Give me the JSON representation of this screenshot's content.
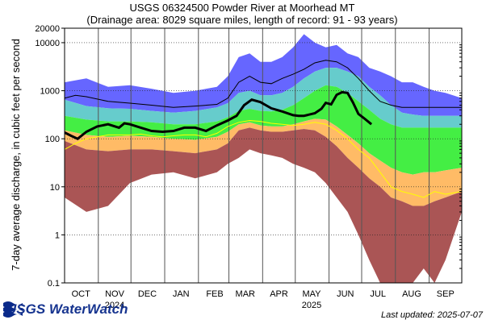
{
  "chart_data": {
    "type": "area",
    "title": "USGS 06324500 Powder River at Moorhead MT",
    "subtitle": "(Drainage area: 8029 square miles, length of record: 91 - 93 years)",
    "ylabel": "7-day average discharge, in cubic feet per second",
    "y_scale": "log",
    "ylim": [
      0.1,
      20000
    ],
    "y_ticks": [
      {
        "value": 20000,
        "label": "20000"
      },
      {
        "value": 10000,
        "label": "10000"
      },
      {
        "value": 1000,
        "label": "1000"
      },
      {
        "value": 100,
        "label": "100"
      },
      {
        "value": 10,
        "label": "10"
      },
      {
        "value": 1,
        "label": "1"
      },
      {
        "value": 0.1,
        "label": "0.1"
      }
    ],
    "x_month_labels": [
      {
        "label": "OCT",
        "day": 15
      },
      {
        "label": "NOV",
        "day": 46
      },
      {
        "label": "DEC",
        "day": 76
      },
      {
        "label": "JAN",
        "day": 107
      },
      {
        "label": "FEB",
        "day": 138
      },
      {
        "label": "MAR",
        "day": 166
      },
      {
        "label": "APR",
        "day": 197
      },
      {
        "label": "MAY",
        "day": 227
      },
      {
        "label": "JUN",
        "day": 258
      },
      {
        "label": "JUL",
        "day": 288
      },
      {
        "label": "AUG",
        "day": 319
      },
      {
        "label": "SEP",
        "day": 350
      }
    ],
    "year_labels": [
      {
        "label": "2024",
        "day": 46
      },
      {
        "label": "2025",
        "day": 227
      }
    ],
    "month_boundaries": [
      31,
      61,
      92,
      123,
      151,
      182,
      212,
      243,
      273,
      304,
      335
    ],
    "xlim": [
      0,
      365
    ],
    "grid": true,
    "percentile_colors": {
      "max_to_p90": "#6666ff",
      "p90_to_p75": "#66cccc",
      "p75_to_p25": "#44ee44",
      "p25_to_p10": "#ffbb66",
      "p10_to_min": "#aa5555",
      "current": "#000000",
      "mean": "#000000",
      "median": "#ffff00"
    },
    "bands": {
      "x": [
        0,
        20,
        40,
        60,
        80,
        100,
        120,
        140,
        150,
        160,
        170,
        180,
        190,
        200,
        210,
        220,
        230,
        240,
        250,
        260,
        270,
        280,
        290,
        300,
        310,
        320,
        330,
        340,
        350,
        365
      ],
      "max": [
        1500,
        1800,
        1200,
        1300,
        1100,
        900,
        1000,
        1200,
        2000,
        5000,
        6000,
        4000,
        4000,
        5000,
        8000,
        15000,
        10000,
        8000,
        9000,
        6000,
        5000,
        3000,
        2500,
        2000,
        1500,
        1500,
        1200,
        1000,
        900,
        700
      ],
      "p90": [
        650,
        480,
        430,
        420,
        380,
        350,
        380,
        450,
        550,
        900,
        1000,
        800,
        800,
        900,
        1200,
        1800,
        2500,
        3000,
        3000,
        2500,
        2000,
        1200,
        800,
        500,
        350,
        320,
        300,
        300,
        300,
        300
      ],
      "p75": [
        300,
        250,
        230,
        230,
        220,
        200,
        200,
        230,
        280,
        380,
        420,
        380,
        370,
        400,
        500,
        700,
        1000,
        1300,
        1200,
        900,
        600,
        400,
        260,
        200,
        170,
        170,
        170,
        170,
        170,
        170
      ],
      "p25": [
        150,
        120,
        110,
        115,
        110,
        100,
        95,
        110,
        140,
        200,
        220,
        190,
        180,
        180,
        200,
        230,
        260,
        250,
        180,
        120,
        80,
        50,
        35,
        25,
        20,
        18,
        20,
        20,
        22,
        25
      ],
      "p10": [
        90,
        60,
        55,
        60,
        60,
        55,
        50,
        60,
        80,
        150,
        170,
        150,
        140,
        140,
        150,
        160,
        150,
        110,
        70,
        40,
        25,
        15,
        10,
        6,
        5,
        4,
        4,
        5,
        6,
        8
      ],
      "min": [
        6,
        3,
        4,
        12,
        18,
        20,
        15,
        20,
        30,
        40,
        60,
        50,
        45,
        40,
        30,
        25,
        20,
        12,
        6,
        3,
        1,
        0.3,
        0.1,
        0.1,
        0.1,
        0.1,
        0.2,
        0.1,
        0.3,
        3
      ]
    },
    "series": [
      {
        "name": "current",
        "x": [
          0,
          6,
          12,
          20,
          30,
          40,
          50,
          55,
          60,
          70,
          80,
          90,
          100,
          110,
          120,
          130,
          140,
          150,
          158,
          165,
          172,
          180,
          190,
          200,
          210,
          215,
          220,
          230,
          236,
          240,
          245,
          250,
          255,
          260,
          265,
          270,
          275,
          282
        ],
        "y": [
          135,
          115,
          100,
          140,
          180,
          200,
          170,
          210,
          200,
          170,
          145,
          140,
          145,
          170,
          170,
          145,
          190,
          240,
          300,
          500,
          650,
          580,
          430,
          370,
          310,
          300,
          300,
          340,
          420,
          560,
          520,
          820,
          930,
          900,
          570,
          330,
          270,
          200
        ]
      },
      {
        "name": "mean",
        "x": [
          0,
          10,
          20,
          40,
          60,
          80,
          100,
          120,
          140,
          150,
          160,
          170,
          180,
          190,
          200,
          210,
          220,
          230,
          240,
          250,
          260,
          270,
          280,
          290,
          300,
          310,
          320,
          330,
          340,
          350,
          365
        ],
        "y": [
          700,
          800,
          750,
          600,
          550,
          500,
          450,
          480,
          520,
          700,
          1500,
          2000,
          1500,
          1400,
          1800,
          2200,
          2800,
          3800,
          4300,
          4000,
          3000,
          1800,
          1000,
          600,
          500,
          450,
          450,
          450,
          450,
          450,
          450
        ]
      },
      {
        "name": "median",
        "x": [
          0,
          10,
          20,
          30,
          40,
          50,
          60,
          70,
          80,
          90,
          100,
          110,
          120,
          130,
          140,
          150,
          160,
          170,
          180,
          190,
          200,
          210,
          220,
          230,
          240,
          250,
          260,
          270,
          280,
          290,
          300,
          310,
          320,
          330,
          340,
          350,
          365
        ],
        "y": [
          60,
          80,
          100,
          110,
          120,
          120,
          120,
          125,
          115,
          110,
          115,
          120,
          120,
          110,
          130,
          180,
          220,
          240,
          230,
          210,
          200,
          190,
          200,
          220,
          200,
          150,
          100,
          60,
          40,
          20,
          10,
          8,
          7,
          6,
          8,
          7,
          8
        ]
      }
    ]
  },
  "footer": {
    "logo_text": "USGS WaterWatch",
    "updated": "Last updated: 2025-07-07"
  }
}
